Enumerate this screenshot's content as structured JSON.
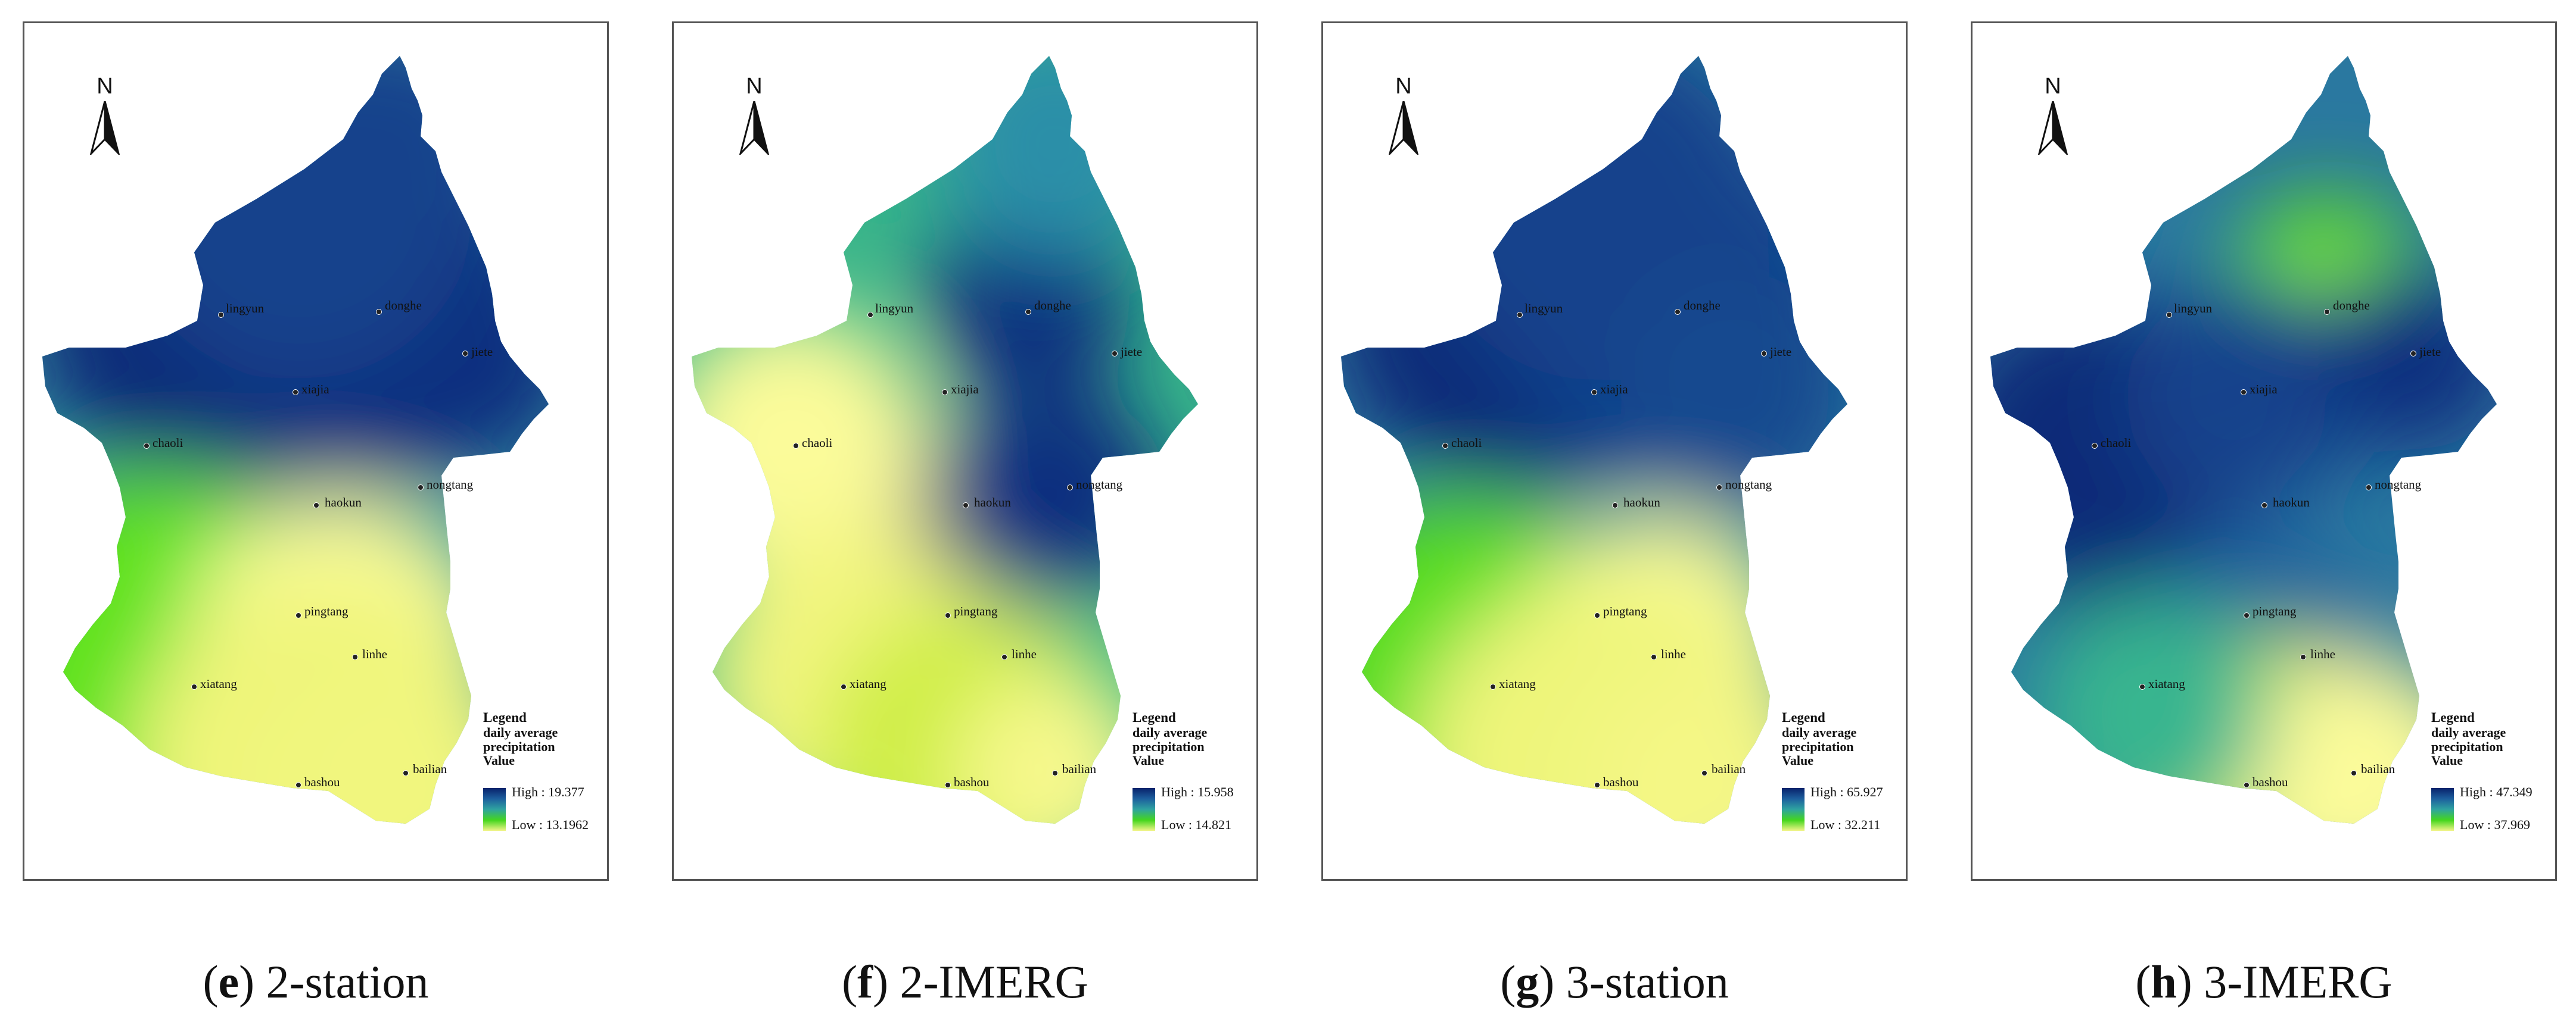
{
  "north_label": "N",
  "legend": {
    "title": "Legend",
    "subtitle_line1": "daily average",
    "subtitle_line2": "precipitation",
    "value_label": "Value"
  },
  "panels": [
    {
      "letter": "e",
      "caption": " 2-station",
      "high": "High : 19.377",
      "low": "Low : 13.1962"
    },
    {
      "letter": "f",
      "caption": " 2-IMERG",
      "high": "High : 15.958",
      "low": "Low : 14.821"
    },
    {
      "letter": "g",
      "caption": " 3-station",
      "high": "High : 65.927",
      "low": "Low : 32.211"
    },
    {
      "letter": "h",
      "caption": " 3-IMERG",
      "high": "High : 47.349",
      "low": "Low : 37.969"
    }
  ],
  "stations": [
    "lingyun",
    "donghe",
    "jiete",
    "xiajia",
    "chaoli",
    "haokun",
    "nongtang",
    "pingtang",
    "linhe",
    "xiatang",
    "bashou",
    "bailian"
  ],
  "colors": {
    "high": "#08226b",
    "mid": "#2ea3a0",
    "low_green": "#44d61e",
    "low": "#f2f58a"
  }
}
